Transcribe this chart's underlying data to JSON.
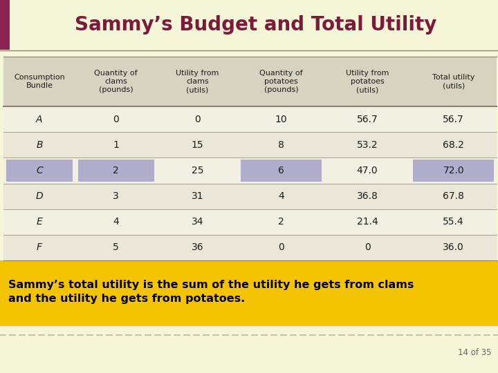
{
  "title": "Sammy’s Budget and Total Utility",
  "title_color": "#7B1A3A",
  "slide_bg": "#F5F5D8",
  "header_bg": "#D8D3C0",
  "accent_bar_color": "#8B2252",
  "highlight_color": "#B0ACCC",
  "footer_bg": "#F5C400",
  "footer_text": "Sammy’s total utility is the sum of the utility he gets from clams\nand the utility he gets from potatoes.",
  "footer_text_color": "#000000",
  "page_number": "14 of 35",
  "col_headers": [
    "Consumption\nBundle",
    "Quantity of\nclams\n(pounds)",
    "Utility from\nclams\n(utils)",
    "Quantity of\npotatoes\n(pounds)",
    "Utility from\npotatoes\n(utils)",
    "Total utility\n(utils)"
  ],
  "rows": [
    [
      "A",
      "0",
      "0",
      "10",
      "56.7",
      "56.7"
    ],
    [
      "B",
      "1",
      "15",
      "8",
      "53.2",
      "68.2"
    ],
    [
      "C",
      "2",
      "25",
      "6",
      "47.0",
      "72.0"
    ],
    [
      "D",
      "3",
      "31",
      "4",
      "36.8",
      "67.8"
    ],
    [
      "E",
      "4",
      "34",
      "2",
      "21.4",
      "55.4"
    ],
    [
      "F",
      "5",
      "36",
      "0",
      "0",
      "36.0"
    ]
  ],
  "highlight_row": 2,
  "highlight_cols": [
    0,
    1,
    3,
    5
  ],
  "row_bg_light": "#F2EFE3",
  "row_bg_dark": "#EAE6D8",
  "separator_line_color": "#8B8070",
  "title_line_color": "#8B8070",
  "dashed_line_color": "#C0B890"
}
